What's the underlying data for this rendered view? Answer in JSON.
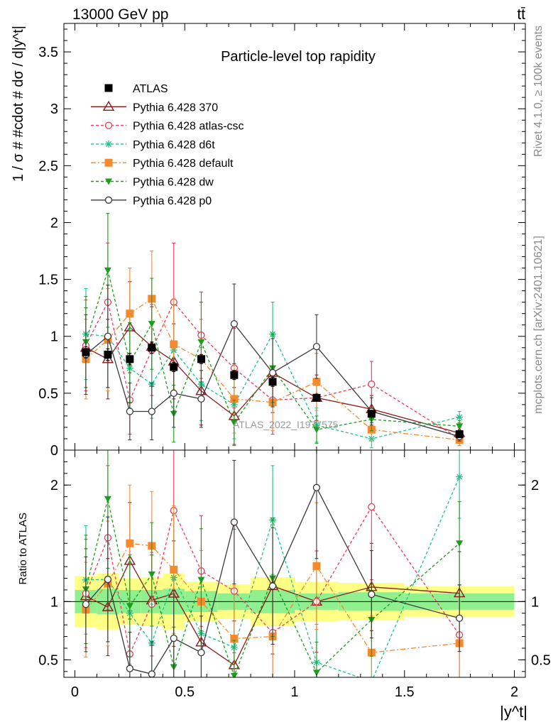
{
  "header": {
    "left": "13000 GeV pp",
    "right": "tt̄"
  },
  "side_labels": {
    "rivet": "Rivet 4.1.0, ≥ 100k events",
    "mcplots": "mcplots.cern.ch [arXiv:2401.10621]"
  },
  "watermark": "ATLAS_2022_I1977575",
  "chart_data": {
    "type": "line",
    "title": "Particle-level top rapidity",
    "xlabel": "|y^t|",
    "ylabel": "1 / σ # #cdot # dσ / d|y^t|",
    "ratio_ylabel": "Ratio to ATLAS",
    "xlim": [
      -0.05,
      2.05
    ],
    "ylim": [
      0,
      3.75
    ],
    "ratio_ylim": [
      0.35,
      2.3
    ],
    "xticks": [
      {
        "value": 0,
        "label": "0"
      },
      {
        "value": 0.5,
        "label": "0.5"
      },
      {
        "value": 1,
        "label": "1"
      },
      {
        "value": 1.5,
        "label": "1.5"
      },
      {
        "value": 2,
        "label": "2"
      }
    ],
    "yticks": [
      {
        "value": 0,
        "label": "0"
      },
      {
        "value": 0.5,
        "label": "0.5"
      },
      {
        "value": 1,
        "label": "1"
      },
      {
        "value": 1.5,
        "label": "1.5"
      },
      {
        "value": 2,
        "label": "2"
      },
      {
        "value": 2.5,
        "label": "2.5"
      },
      {
        "value": 3,
        "label": "3"
      },
      {
        "value": 3.5,
        "label": "3.5"
      }
    ],
    "ratio_yticks": [
      {
        "value": 0.5,
        "label": "0.5"
      },
      {
        "value": 1,
        "label": "1"
      },
      {
        "value": 2,
        "label": "2"
      }
    ],
    "bins": [
      0,
      0.1,
      0.2,
      0.3,
      0.4,
      0.5,
      0.65,
      0.8,
      1.0,
      1.2,
      1.5,
      2.0
    ],
    "x": [
      0.05,
      0.15,
      0.25,
      0.35,
      0.45,
      0.575,
      0.725,
      0.9,
      1.1,
      1.35,
      1.75
    ],
    "data": {
      "name": "ATLAS",
      "values": [
        0.86,
        0.84,
        0.8,
        0.9,
        0.73,
        0.8,
        0.66,
        0.6,
        0.46,
        0.32,
        0.14
      ],
      "errors": [
        0.05,
        0.05,
        0.05,
        0.05,
        0.04,
        0.04,
        0.04,
        0.04,
        0.03,
        0.02,
        0.01
      ],
      "band_inner": [
        0.1,
        0.11,
        0.1,
        0.1,
        0.11,
        0.09,
        0.07,
        0.1,
        0.07,
        0.08,
        0.07
      ],
      "band_outer": [
        0.22,
        0.24,
        0.2,
        0.21,
        0.24,
        0.17,
        0.15,
        0.21,
        0.17,
        0.16,
        0.13
      ]
    },
    "series": [
      {
        "name": "Pythia 6.428 370",
        "color": "#8b1a1a",
        "dash": "",
        "marker": "triangle-open",
        "values": [
          0.9,
          0.8,
          1.08,
          0.91,
          0.78,
          0.52,
          0.3,
          0.68,
          0.46,
          0.36,
          0.15
        ],
        "errors": [
          0.35,
          0.35,
          0.4,
          0.35,
          0.33,
          0.3,
          0.25,
          0.35,
          0.2,
          0.12,
          0.05
        ]
      },
      {
        "name": "Pythia 6.428 atlas-csc",
        "color": "#ec3a5c",
        "dash": "4,3",
        "marker": "circle-open",
        "values": [
          0.92,
          1.3,
          0.44,
          0.88,
          1.3,
          1.01,
          0.72,
          0.44,
          0.46,
          0.58,
          0.1
        ],
        "errors": [
          0.4,
          0.52,
          0.3,
          0.4,
          0.52,
          0.38,
          0.35,
          0.3,
          0.2,
          0.2,
          0.06
        ]
      },
      {
        "name": "Pythia 6.428 d6t",
        "color": "#1dc38a",
        "dash": "4,3",
        "marker": "star",
        "values": [
          1.02,
          1.0,
          0.72,
          0.58,
          0.88,
          0.58,
          0.4,
          1.02,
          0.22,
          0.1,
          0.29
        ],
        "errors": [
          0.4,
          0.45,
          0.35,
          0.3,
          0.4,
          0.32,
          0.3,
          0.28,
          0.15,
          0.08,
          0.05
        ]
      },
      {
        "name": "Pythia 6.428 default",
        "color": "#f48a2e",
        "dash": "7,3,2,3",
        "marker": "square",
        "values": [
          0.8,
          0.97,
          1.2,
          1.33,
          0.93,
          0.8,
          0.45,
          0.42,
          0.6,
          0.18,
          0.09
        ],
        "errors": [
          0.35,
          0.45,
          0.4,
          0.42,
          0.4,
          0.35,
          0.3,
          0.25,
          0.25,
          0.1,
          0.05
        ]
      },
      {
        "name": "Pythia 6.428 dw",
        "color": "#1a9e1a",
        "dash": "4,3",
        "marker": "triangle-down",
        "values": [
          0.95,
          1.58,
          0.77,
          1.11,
          0.32,
          0.95,
          0.24,
          0.72,
          0.18,
          0.27,
          0.21
        ],
        "errors": [
          0.4,
          0.5,
          0.35,
          0.4,
          0.25,
          0.35,
          0.2,
          0.3,
          0.12,
          0.1,
          0.05
        ]
      },
      {
        "name": "Pythia 6.428 p0",
        "color": "#3a3a3a",
        "dash": "",
        "marker": "circle-open",
        "values": [
          0.84,
          1.0,
          0.34,
          0.34,
          0.5,
          0.45,
          1.11,
          0.68,
          0.91,
          0.34,
          0.12
        ],
        "errors": [
          0.35,
          0.45,
          0.25,
          0.25,
          0.3,
          0.25,
          0.35,
          0.3,
          0.28,
          0.12,
          0.04
        ]
      }
    ]
  }
}
